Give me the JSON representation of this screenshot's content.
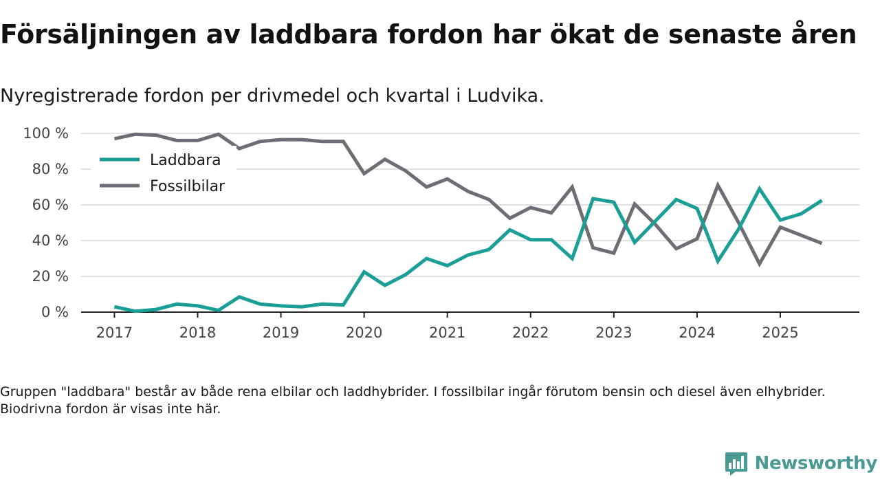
{
  "title": "Försäljningen av laddbara fordon har ökat de senaste åren",
  "subtitle": "Nyregistrerade fordon per drivmedel och kvartal i Ludvika.",
  "note": "Gruppen \"laddbara\" består av både rena elbilar och laddhybrider. I fossilbilar ingår förutom bensin och diesel även elhybrider. Biodrivna fordon är visas inte här.",
  "brand": {
    "name": "Newsworthy",
    "logo_icon": "newsworthy-chart-bubble-icon"
  },
  "colors": {
    "laddbara": "#1a9e96",
    "fossil": "#6e6c75",
    "grid": "#d9d9d9",
    "axis": "#222222",
    "brand": "#4a9a94"
  },
  "chart_data": {
    "type": "line",
    "title": "Försäljningen av laddbara fordon har ökat de senaste åren",
    "xlabel": "",
    "ylabel": "",
    "x": [
      2017.0,
      2017.25,
      2017.5,
      2017.75,
      2018.0,
      2018.25,
      2018.5,
      2018.75,
      2019.0,
      2019.25,
      2019.5,
      2019.75,
      2020.0,
      2020.25,
      2020.5,
      2020.75,
      2021.0,
      2021.25,
      2021.5,
      2021.75,
      2022.0,
      2022.25,
      2022.5,
      2022.75,
      2023.0,
      2023.25,
      2023.5,
      2023.75,
      2024.0,
      2024.25,
      2024.5,
      2024.75,
      2025.0,
      2025.25,
      2025.5
    ],
    "xlim": [
      2016.6,
      2025.95
    ],
    "ylim": [
      0,
      100
    ],
    "x_ticks": [
      2017,
      2018,
      2019,
      2020,
      2021,
      2022,
      2023,
      2024,
      2025
    ],
    "x_tick_labels": [
      "2017",
      "2018",
      "2019",
      "2020",
      "2021",
      "2022",
      "2023",
      "2024",
      "2025"
    ],
    "y_ticks": [
      0,
      20,
      40,
      60,
      80,
      100
    ],
    "y_tick_labels": [
      "0 %",
      "20 %",
      "40 %",
      "60 %",
      "80 %",
      "100 %"
    ],
    "grid": true,
    "legend_position": "top-left",
    "series": [
      {
        "name": "Laddbara",
        "color": "#1a9e96",
        "values": [
          3,
          0.5,
          1.5,
          4.5,
          3.5,
          1,
          8.5,
          4.5,
          3.5,
          3,
          4.5,
          4,
          22.5,
          15,
          21,
          30,
          26,
          32,
          35,
          46,
          40.5,
          40.5,
          30,
          63.5,
          61.5,
          39,
          51,
          63,
          58,
          28.5,
          46.5,
          69,
          51.5,
          55,
          62.5
        ]
      },
      {
        "name": "Fossilbilar",
        "color": "#6e6c75",
        "values": [
          97,
          99.5,
          99,
          96,
          96,
          99.5,
          91.5,
          95.5,
          96.5,
          96.5,
          95.5,
          95.5,
          77.5,
          85.5,
          79,
          70,
          74.5,
          67.5,
          63,
          52.5,
          58.5,
          55.5,
          70,
          36,
          33,
          60.5,
          49,
          35.5,
          41,
          71,
          50,
          27,
          47.5,
          43,
          38.5
        ]
      }
    ]
  }
}
